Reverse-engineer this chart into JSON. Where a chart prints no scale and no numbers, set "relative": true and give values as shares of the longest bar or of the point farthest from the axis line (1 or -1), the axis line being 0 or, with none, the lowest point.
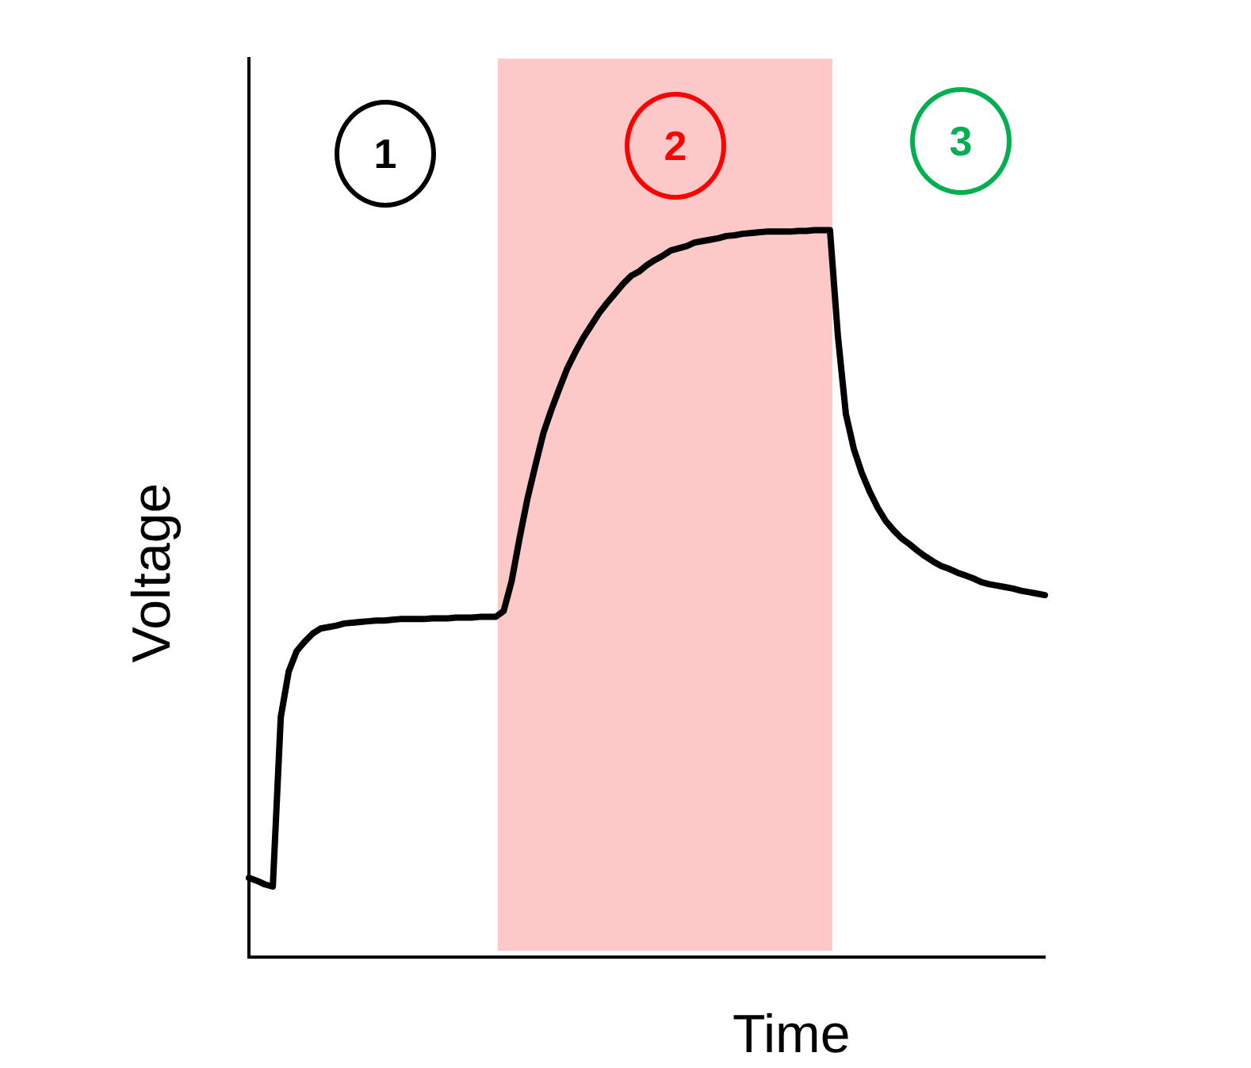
{
  "chart_data": {
    "type": "line",
    "relative": true,
    "xlabel": "Time",
    "ylabel": "Voltage",
    "marker": "none",
    "line_style": "solid",
    "categories": [
      null,
      null,
      null,
      null,
      null,
      null,
      null,
      null,
      null,
      null,
      null,
      null,
      null,
      null,
      null,
      null,
      null,
      null,
      null,
      null,
      null,
      null,
      null,
      null,
      null,
      null,
      null,
      null,
      null,
      null,
      null,
      null,
      null,
      null,
      null,
      null,
      null,
      null,
      null,
      null,
      null,
      null,
      null,
      null,
      null,
      null,
      null,
      null,
      null,
      null,
      null,
      null,
      null,
      null,
      null,
      null,
      null,
      null,
      null,
      null,
      null,
      null,
      null,
      null,
      null,
      null,
      null,
      null,
      null,
      null,
      null,
      null,
      null,
      null,
      null,
      null,
      null,
      null,
      null,
      null,
      null,
      null,
      null,
      null,
      null,
      null,
      null,
      null,
      null,
      null,
      null,
      null,
      null,
      null,
      null,
      null,
      null,
      null,
      null,
      null,
      null
    ],
    "series": [
      {
        "color": "#000000",
        "values": [
          0.109,
          0.105,
          0.1,
          0.097,
          0.33,
          0.393,
          0.421,
          0.434,
          0.445,
          0.452,
          0.454,
          0.456,
          0.459,
          0.46,
          0.461,
          0.462,
          0.463,
          0.463,
          0.464,
          0.465,
          0.465,
          0.465,
          0.465,
          0.466,
          0.466,
          0.466,
          0.467,
          0.467,
          0.467,
          0.468,
          0.468,
          0.468,
          0.476,
          0.517,
          0.576,
          0.631,
          0.677,
          0.721,
          0.753,
          0.782,
          0.81,
          0.832,
          0.852,
          0.869,
          0.886,
          0.9,
          0.913,
          0.926,
          0.937,
          0.943,
          0.952,
          0.959,
          0.965,
          0.972,
          0.975,
          0.978,
          0.983,
          0.985,
          0.987,
          0.989,
          0.992,
          0.993,
          0.995,
          0.996,
          0.997,
          0.998,
          0.998,
          0.998,
          0.998,
          0.999,
          0.999,
          1,
          1,
          1,
          0.854,
          0.747,
          0.699,
          0.666,
          0.64,
          0.618,
          0.6,
          0.587,
          0.576,
          0.568,
          0.559,
          0.551,
          0.544,
          0.538,
          0.534,
          0.529,
          0.525,
          0.521,
          0.516,
          0.513,
          0.511,
          0.509,
          0.507,
          0.504,
          0.502,
          0.5,
          0.498
        ]
      }
    ],
    "annotations": [
      "1",
      "2",
      "3"
    ]
  }
}
